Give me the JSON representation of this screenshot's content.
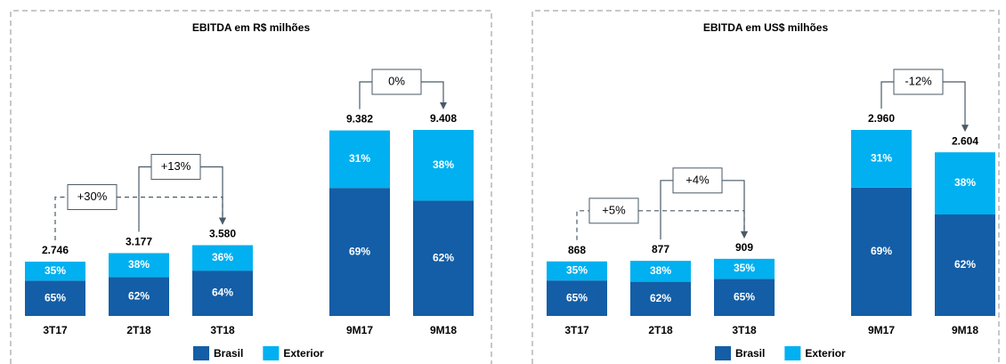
{
  "chart_data": [
    {
      "type": "bar",
      "title": "EBITDA  em R$ milhões",
      "categories": [
        "3T17",
        "2T18",
        "3T18",
        "9M17",
        "9M18"
      ],
      "values": [
        2746,
        3177,
        3580,
        9382,
        9408
      ],
      "value_labels": [
        "2.746",
        "3.177",
        "3.580",
        "9.382",
        "9.408"
      ],
      "series": [
        {
          "name": "Brasil",
          "color": "#135ea6",
          "values": [
            65,
            62,
            64,
            69,
            62
          ],
          "value_labels": [
            "65%",
            "62%",
            "64%",
            "69%",
            "62%"
          ]
        },
        {
          "name": "Exterior",
          "color": "#00b0f0",
          "values": [
            35,
            38,
            36,
            31,
            38
          ],
          "value_labels": [
            "35%",
            "38%",
            "36%",
            "31%",
            "38%"
          ]
        }
      ],
      "annotations": [
        {
          "label": "+30%",
          "from": "3T17",
          "to": "3T18",
          "dashed": true
        },
        {
          "label": "+13%",
          "from": "2T18",
          "to": "3T18",
          "dashed": false
        },
        {
          "label": "0%",
          "from": "9M17",
          "to": "9M18",
          "dashed": false
        }
      ],
      "legend": "bottom"
    },
    {
      "type": "bar",
      "title": "EBITDA  em US$ milhões",
      "categories": [
        "3T17",
        "2T18",
        "3T18",
        "9M17",
        "9M18"
      ],
      "values": [
        868,
        877,
        909,
        2960,
        2604
      ],
      "value_labels": [
        "868",
        "877",
        "909",
        "2.960",
        "2.604"
      ],
      "series": [
        {
          "name": "Brasil",
          "color": "#135ea6",
          "values": [
            65,
            62,
            65,
            69,
            62
          ],
          "value_labels": [
            "65%",
            "62%",
            "65%",
            "69%",
            "62%"
          ]
        },
        {
          "name": "Exterior",
          "color": "#00b0f0",
          "values": [
            35,
            38,
            35,
            31,
            38
          ],
          "value_labels": [
            "35%",
            "38%",
            "35%",
            "31%",
            "38%"
          ]
        }
      ],
      "annotations": [
        {
          "label": "+5%",
          "from": "3T17",
          "to": "3T18",
          "dashed": true
        },
        {
          "label": "+4%",
          "from": "2T18",
          "to": "3T18",
          "dashed": false
        },
        {
          "label": "-12%",
          "from": "9M17",
          "to": "9M18",
          "dashed": false
        }
      ],
      "legend": "bottom"
    }
  ]
}
